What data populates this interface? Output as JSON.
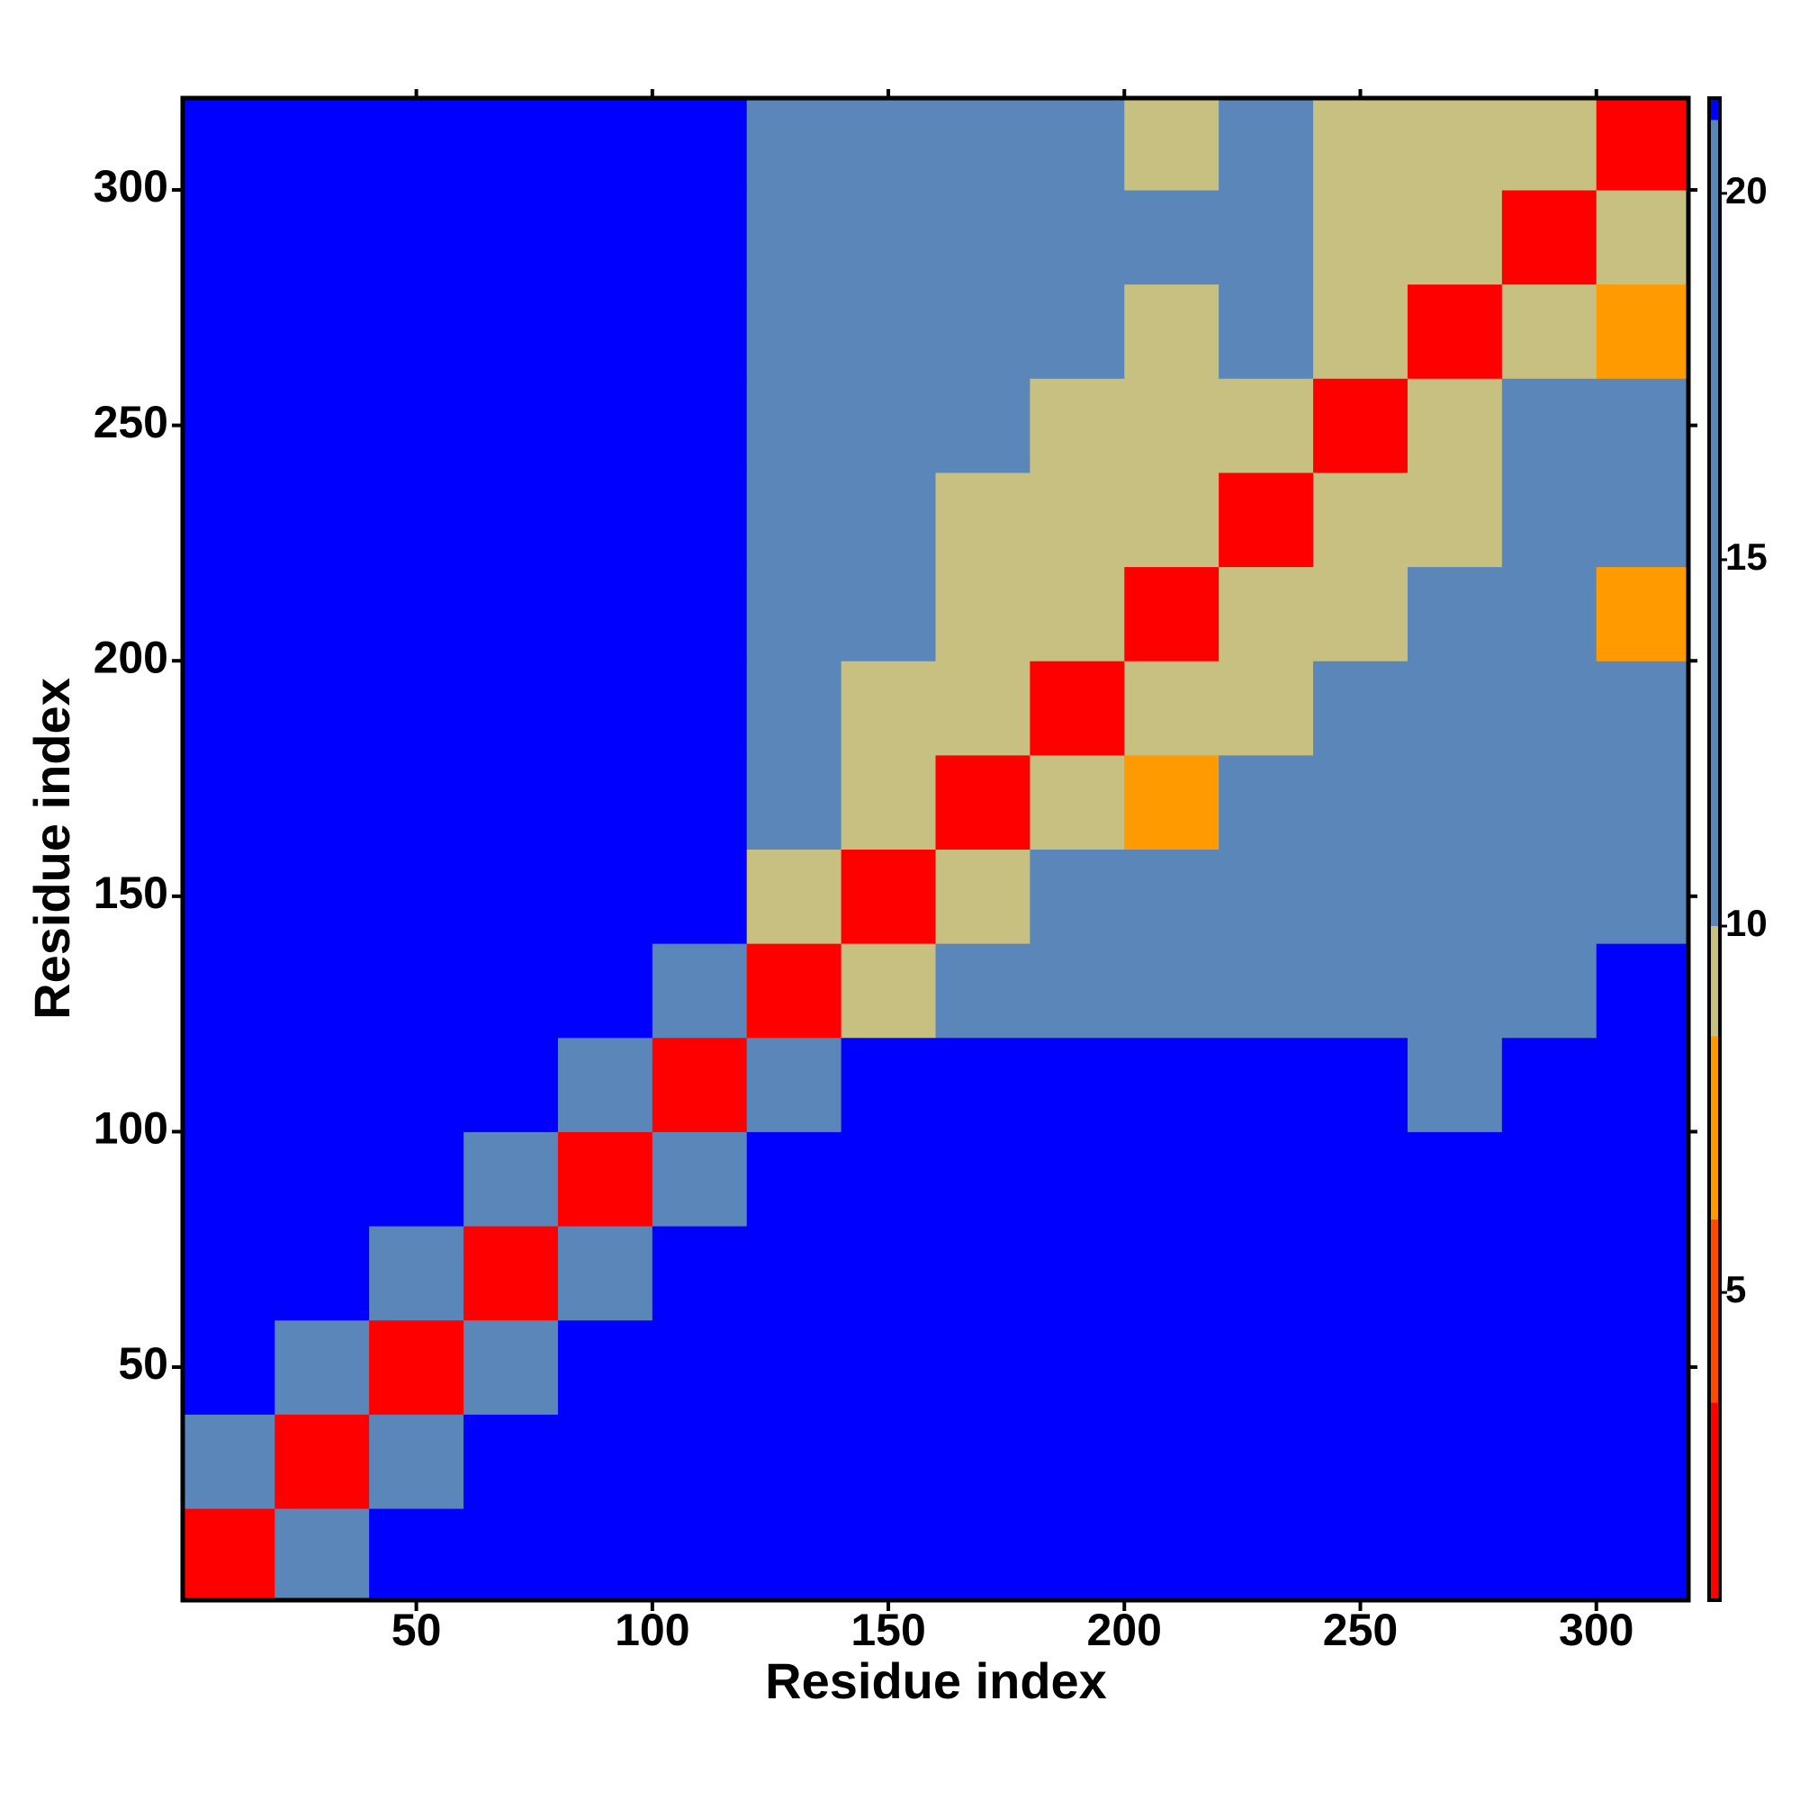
{
  "chart_data": {
    "type": "heatmap",
    "xlabel": "Residue index",
    "ylabel": "Residue index",
    "x": [
      10,
      30,
      50,
      70,
      90,
      110,
      130,
      150,
      170,
      190,
      210,
      230,
      250,
      270,
      290,
      310
    ],
    "y": [
      10,
      30,
      50,
      70,
      90,
      110,
      130,
      150,
      170,
      190,
      210,
      230,
      250,
      270,
      290,
      310
    ],
    "z": [
      [
        2,
        16,
        21,
        21,
        21,
        21,
        21,
        21,
        21,
        21,
        21,
        21,
        21,
        21,
        21,
        21
      ],
      [
        16,
        2,
        16,
        21,
        21,
        21,
        21,
        21,
        21,
        21,
        21,
        21,
        21,
        21,
        21,
        21
      ],
      [
        21,
        16,
        2,
        16,
        21,
        21,
        21,
        21,
        21,
        21,
        21,
        21,
        21,
        21,
        21,
        21
      ],
      [
        21,
        21,
        16,
        2,
        16,
        21,
        21,
        21,
        21,
        21,
        21,
        21,
        21,
        21,
        21,
        21
      ],
      [
        21,
        21,
        21,
        16,
        2,
        16,
        21,
        21,
        21,
        21,
        21,
        21,
        21,
        21,
        21,
        21
      ],
      [
        21,
        21,
        21,
        21,
        16,
        2,
        16,
        21,
        21,
        21,
        21,
        21,
        21,
        17,
        21,
        21
      ],
      [
        21,
        21,
        21,
        21,
        21,
        16,
        2,
        9,
        17,
        17,
        17,
        17,
        17,
        17,
        17,
        21
      ],
      [
        21,
        21,
        21,
        21,
        21,
        21,
        9,
        2,
        9,
        17,
        17,
        17,
        17,
        17,
        17,
        17
      ],
      [
        21,
        21,
        21,
        21,
        21,
        21,
        17,
        9,
        2,
        9,
        7,
        17,
        17,
        17,
        17,
        17
      ],
      [
        21,
        21,
        21,
        21,
        21,
        21,
        17,
        9,
        9,
        2,
        9,
        9,
        17,
        17,
        17,
        17
      ],
      [
        21,
        21,
        21,
        21,
        21,
        21,
        17,
        17,
        9,
        9,
        2,
        9,
        9,
        17,
        17,
        7
      ],
      [
        21,
        21,
        21,
        21,
        21,
        21,
        17,
        17,
        9,
        9,
        9,
        2,
        9,
        9,
        17,
        17
      ],
      [
        21,
        21,
        21,
        21,
        21,
        21,
        17,
        17,
        17,
        9,
        9,
        9,
        2,
        9,
        17,
        17
      ],
      [
        21,
        21,
        21,
        21,
        21,
        21,
        17,
        17,
        17,
        17,
        9,
        17,
        9,
        2,
        9,
        7
      ],
      [
        21,
        21,
        21,
        21,
        21,
        21,
        17,
        17,
        17,
        17,
        17,
        17,
        9,
        9,
        2,
        9
      ],
      [
        21,
        21,
        21,
        21,
        21,
        21,
        17,
        17,
        17,
        17,
        9,
        17,
        9,
        9,
        9,
        2
      ]
    ],
    "xlim": [
      0.5,
      319.5
    ],
    "ylim": [
      0.5,
      319.5
    ],
    "xticks": [
      50,
      100,
      150,
      200,
      250,
      300
    ],
    "yticks": [
      50,
      100,
      150,
      200,
      250,
      300
    ],
    "clim": [
      0.8,
      21.3
    ],
    "cticks": [
      5,
      10,
      15,
      20
    ],
    "colorscale": [
      {
        "value": 0.8,
        "color": "#ff0000"
      },
      {
        "value": 3.5,
        "color": "#ff4a00"
      },
      {
        "value": 6,
        "color": "#ff9a00"
      },
      {
        "value": 8.5,
        "color": "#c8c080"
      },
      {
        "value": 10,
        "color": "#5a86b9"
      },
      {
        "value": 21,
        "color": "#0000ff"
      }
    ]
  }
}
